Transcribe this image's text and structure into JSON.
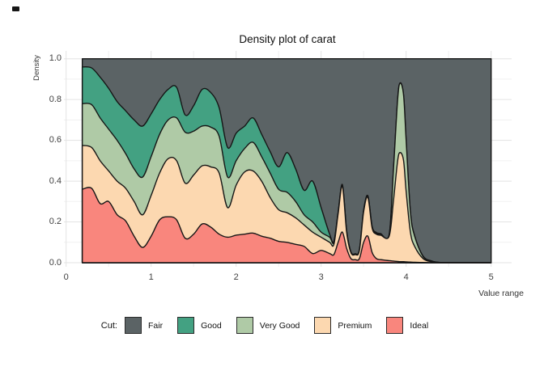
{
  "title": "Density plot of carat",
  "x_axis": {
    "label": "Value range",
    "ticks": [
      "0",
      "1",
      "2",
      "3",
      "4",
      "5"
    ]
  },
  "y_axis": {
    "label": "Density",
    "ticks": [
      "0.0",
      "0.2",
      "0.4",
      "0.6",
      "0.8",
      "1.0"
    ]
  },
  "legend": {
    "title": "Cut:",
    "items": [
      {
        "label": "Fair",
        "color": "#5b6365"
      },
      {
        "label": "Good",
        "color": "#43a182"
      },
      {
        "label": "Very Good",
        "color": "#afcaa6"
      },
      {
        "label": "Premium",
        "color": "#fcd8b0"
      },
      {
        "label": "Ideal",
        "color": "#f9867d"
      }
    ]
  },
  "chart_data": {
    "type": "area",
    "subtype": "stacked filled density (shares sum to 1 at each x)",
    "title": "Density plot of carat",
    "xlabel": "Value range",
    "ylabel": "Density",
    "xlim": [
      0,
      5
    ],
    "ylim": [
      0,
      1
    ],
    "grid": true,
    "legend_position": "bottom",
    "outline_color": "#161616",
    "stack_order_bottom_to_top": [
      "Ideal",
      "Premium",
      "Very Good",
      "Good",
      "Fair"
    ],
    "x_start": 0.19,
    "x_end": 5.0,
    "x": [
      0.19,
      0.3,
      0.4,
      0.5,
      0.6,
      0.7,
      0.8,
      0.9,
      1.0,
      1.1,
      1.2,
      1.3,
      1.4,
      1.5,
      1.6,
      1.7,
      1.8,
      1.9,
      2.0,
      2.1,
      2.2,
      2.3,
      2.4,
      2.5,
      2.6,
      2.7,
      2.8,
      2.9,
      3.0,
      3.1,
      3.15,
      3.2,
      3.25,
      3.3,
      3.35,
      3.4,
      3.45,
      3.5,
      3.55,
      3.6,
      3.65,
      3.7,
      3.8,
      3.85,
      3.9,
      3.93,
      3.97,
      4.0,
      4.05,
      4.1,
      4.2,
      4.3,
      4.4,
      4.6,
      4.8,
      5.0
    ],
    "cumulative_upper_boundaries": {
      "Ideal": [
        0.36,
        0.365,
        0.29,
        0.3,
        0.235,
        0.205,
        0.13,
        0.075,
        0.13,
        0.21,
        0.225,
        0.21,
        0.12,
        0.14,
        0.19,
        0.175,
        0.14,
        0.125,
        0.135,
        0.14,
        0.145,
        0.13,
        0.12,
        0.105,
        0.1,
        0.09,
        0.08,
        0.045,
        0.06,
        0.045,
        0.04,
        0.1,
        0.15,
        0.07,
        0.02,
        0.015,
        0.02,
        0.1,
        0.13,
        0.05,
        0.02,
        0.015,
        0.01,
        0.008,
        0.006,
        0.005,
        0.005,
        0.004,
        0.003,
        0.002,
        0.001,
        0.0,
        0.0,
        0.0,
        0.0,
        0.0
      ],
      "Premium": [
        0.575,
        0.565,
        0.5,
        0.45,
        0.4,
        0.365,
        0.3,
        0.235,
        0.33,
        0.44,
        0.51,
        0.5,
        0.39,
        0.43,
        0.475,
        0.47,
        0.44,
        0.27,
        0.38,
        0.445,
        0.45,
        0.4,
        0.32,
        0.26,
        0.245,
        0.22,
        0.185,
        0.15,
        0.125,
        0.1,
        0.09,
        0.24,
        0.375,
        0.15,
        0.05,
        0.04,
        0.06,
        0.25,
        0.32,
        0.17,
        0.14,
        0.135,
        0.13,
        0.3,
        0.5,
        0.54,
        0.5,
        0.35,
        0.15,
        0.08,
        0.02,
        0.005,
        0.001,
        0.0,
        0.0,
        0.0
      ],
      "Very Good": [
        0.78,
        0.775,
        0.71,
        0.655,
        0.6,
        0.535,
        0.46,
        0.42,
        0.52,
        0.63,
        0.7,
        0.71,
        0.64,
        0.645,
        0.67,
        0.665,
        0.62,
        0.42,
        0.5,
        0.56,
        0.59,
        0.52,
        0.44,
        0.36,
        0.345,
        0.3,
        0.235,
        0.2,
        0.15,
        0.125,
        0.1,
        0.245,
        0.38,
        0.155,
        0.052,
        0.042,
        0.062,
        0.255,
        0.325,
        0.175,
        0.145,
        0.14,
        0.135,
        0.45,
        0.8,
        0.88,
        0.82,
        0.6,
        0.25,
        0.13,
        0.03,
        0.008,
        0.001,
        0.0,
        0.0,
        0.0
      ],
      "Good": [
        0.96,
        0.955,
        0.91,
        0.855,
        0.79,
        0.745,
        0.7,
        0.67,
        0.73,
        0.8,
        0.85,
        0.86,
        0.725,
        0.77,
        0.85,
        0.835,
        0.76,
        0.565,
        0.635,
        0.67,
        0.71,
        0.63,
        0.545,
        0.47,
        0.54,
        0.46,
        0.355,
        0.4,
        0.27,
        0.14,
        0.105,
        0.248,
        0.383,
        0.158,
        0.054,
        0.044,
        0.064,
        0.258,
        0.328,
        0.178,
        0.148,
        0.143,
        0.138,
        0.452,
        0.802,
        0.882,
        0.822,
        0.602,
        0.252,
        0.132,
        0.032,
        0.009,
        0.001,
        0.0,
        0.0,
        0.0
      ],
      "Fair_top_constant": 1.0
    }
  }
}
